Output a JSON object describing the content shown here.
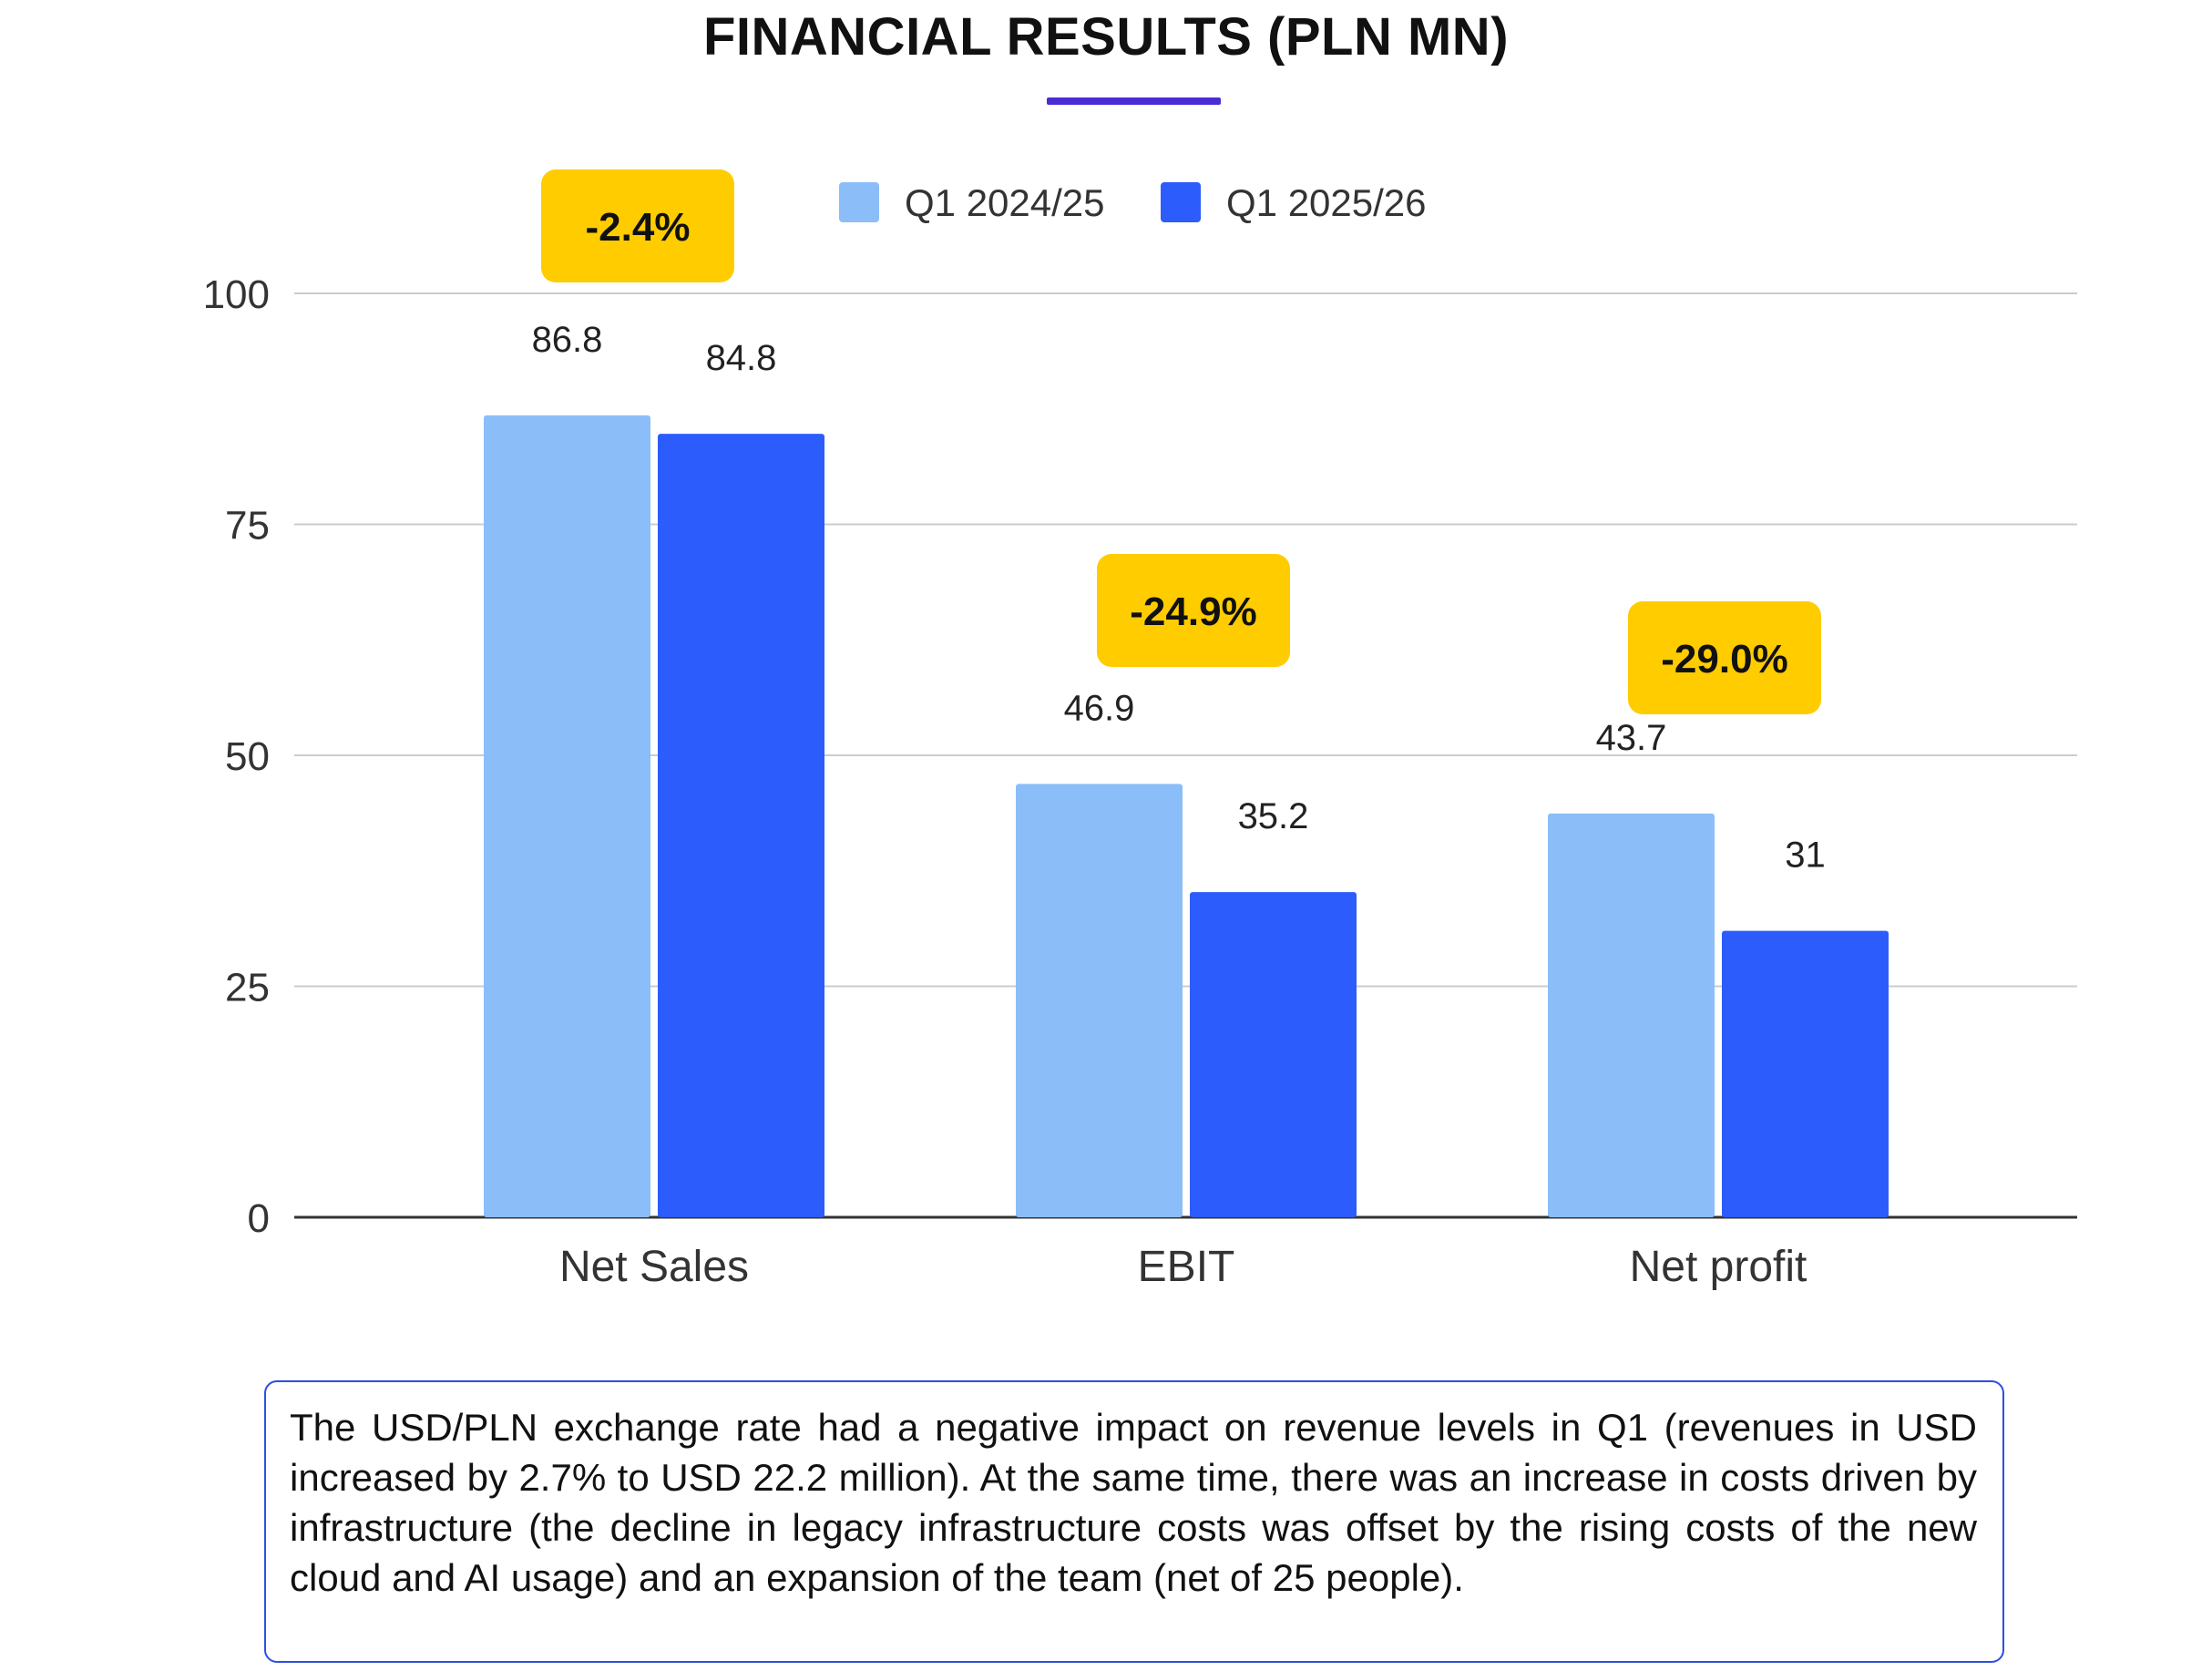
{
  "page": {
    "title": "FINANCIAL RESULTS (PLN MN)"
  },
  "chart_data": {
    "type": "bar",
    "title": "FINANCIAL RESULTS (PLN MN)",
    "categories": [
      "Net Sales",
      "EBIT",
      "Net profit"
    ],
    "series": [
      {
        "name": "Q1 2024/25",
        "values": [
          86.8,
          46.9,
          43.7
        ],
        "labels": [
          "86.8",
          "46.9",
          "43.7"
        ],
        "color": "#8bbdf9"
      },
      {
        "name": "Q1 2025/26",
        "values": [
          84.8,
          35.2,
          31
        ],
        "labels": [
          "84.8",
          "35.2",
          "31"
        ],
        "color": "#2d5cfc"
      }
    ],
    "yticks": [
      0,
      25,
      50,
      75,
      100
    ],
    "ylim": [
      0,
      100
    ],
    "xlabel": "",
    "ylabel": "",
    "grid": true,
    "legend_position": "top-center",
    "annotations": [
      "-2.4%",
      "-24.9%",
      "-29.0%"
    ],
    "annotation_color": "#ffcc00"
  },
  "note": {
    "text": "The USD/PLN exchange rate had a negative impact on revenue levels in Q1 (revenues in USD increased by 2.7% to USD 22.2 million). At the same time, there was an increase in costs driven by infrastructure (the decline in legacy infrastructure costs was offset by the rising costs of the new cloud and AI usage) and an expansion of the team (net of 25 people)."
  },
  "colors": {
    "accent": "#4b2bd4",
    "box_border": "#2e4fe0",
    "grid": "#cccccc",
    "axis": "#333333"
  }
}
